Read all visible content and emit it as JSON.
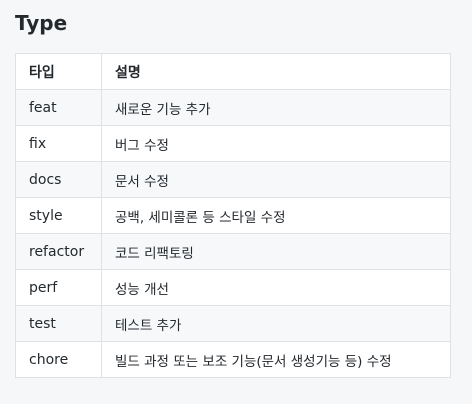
{
  "section": {
    "title": "Type"
  },
  "table": {
    "headers": [
      "타입",
      "설명"
    ],
    "rows": [
      {
        "type": "feat",
        "description": "새로운 기능 추가"
      },
      {
        "type": "fix",
        "description": "버그 수정"
      },
      {
        "type": "docs",
        "description": "문서 수정"
      },
      {
        "type": "style",
        "description": "공백, 세미콜론 등 스타일 수정"
      },
      {
        "type": "refactor",
        "description": "코드 리팩토링"
      },
      {
        "type": "perf",
        "description": "성능 개선"
      },
      {
        "type": "test",
        "description": "테스트 추가"
      },
      {
        "type": "chore",
        "description": "빌드 과정 또는 보조 기능(문서 생성기능 등) 수정"
      }
    ]
  }
}
